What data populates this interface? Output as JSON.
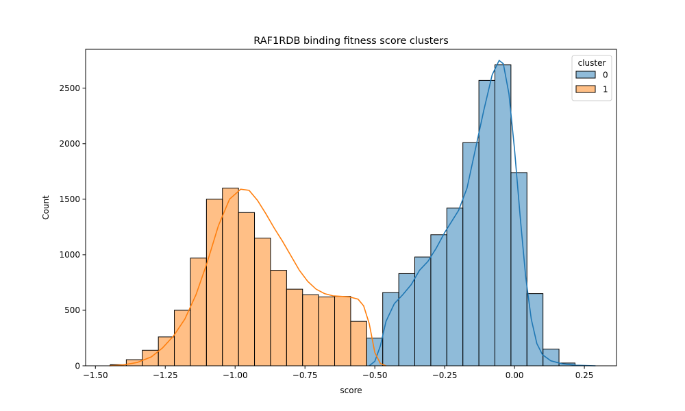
{
  "chart_data": {
    "type": "bar",
    "title": "RAF1RDB binding fitness score clusters",
    "xlabel": "score",
    "ylabel": "Count",
    "xlim": [
      -1.535,
      0.365
    ],
    "ylim": [
      0,
      2850
    ],
    "xticks": [
      -1.5,
      -1.25,
      -1.0,
      -0.75,
      -0.5,
      -0.25,
      0.0,
      0.25
    ],
    "xtick_labels": [
      "−1.50",
      "−1.25",
      "−1.00",
      "−0.75",
      "−0.50",
      "−0.25",
      "0.00",
      "0.25"
    ],
    "yticks": [
      0,
      500,
      1000,
      1500,
      2000,
      2500
    ],
    "ytick_labels": [
      "0",
      "500",
      "1000",
      "1500",
      "2000",
      "2500"
    ],
    "grid": false,
    "bin_edges": [
      -1.4468,
      -1.3894,
      -1.3321,
      -1.2747,
      -1.2174,
      -1.16,
      -1.1026,
      -1.0453,
      -0.9879,
      -0.9306,
      -0.8732,
      -0.8158,
      -0.7585,
      -0.7011,
      -0.6438,
      -0.5864,
      -0.5291,
      -0.4717,
      -0.4143,
      -0.357,
      -0.2996,
      -0.2423,
      -0.1849,
      -0.1275,
      -0.0702,
      -0.0128,
      0.0445,
      0.1019,
      0.1592,
      0.2166
    ],
    "legend": {
      "title": "cluster",
      "position": "top-right"
    },
    "series": [
      {
        "name": "0",
        "color": "#1f77b4",
        "fill": "#8fbbd9",
        "values": [
          0,
          0,
          0,
          0,
          0,
          0,
          0,
          0,
          0,
          0,
          0,
          0,
          0,
          0,
          0,
          0,
          250,
          660,
          830,
          980,
          1180,
          1420,
          2010,
          2570,
          2710,
          1740,
          650,
          150,
          25
        ],
        "kde": [
          [
            -0.52,
            0
          ],
          [
            -0.5,
            40
          ],
          [
            -0.48,
            180
          ],
          [
            -0.46,
            400
          ],
          [
            -0.43,
            560
          ],
          [
            -0.4,
            640
          ],
          [
            -0.37,
            730
          ],
          [
            -0.34,
            860
          ],
          [
            -0.31,
            940
          ],
          [
            -0.28,
            1060
          ],
          [
            -0.25,
            1200
          ],
          [
            -0.22,
            1320
          ],
          [
            -0.2,
            1400
          ],
          [
            -0.17,
            1600
          ],
          [
            -0.14,
            1950
          ],
          [
            -0.11,
            2300
          ],
          [
            -0.08,
            2620
          ],
          [
            -0.055,
            2750
          ],
          [
            -0.04,
            2720
          ],
          [
            -0.02,
            2450
          ],
          [
            0.0,
            1950
          ],
          [
            0.02,
            1350
          ],
          [
            0.04,
            800
          ],
          [
            0.06,
            420
          ],
          [
            0.08,
            200
          ],
          [
            0.1,
            100
          ],
          [
            0.13,
            45
          ],
          [
            0.17,
            18
          ],
          [
            0.22,
            5
          ],
          [
            0.29,
            0
          ]
        ]
      },
      {
        "name": "1",
        "color": "#ff7f0e",
        "fill": "#ffbf86",
        "values": [
          10,
          55,
          140,
          260,
          500,
          970,
          1500,
          1600,
          1380,
          1150,
          860,
          690,
          640,
          620,
          625,
          400,
          0,
          0,
          0,
          0,
          0,
          0,
          0,
          0,
          0,
          0,
          0,
          0,
          0
        ],
        "kde": [
          [
            -1.45,
            0
          ],
          [
            -1.4,
            8
          ],
          [
            -1.35,
            30
          ],
          [
            -1.3,
            80
          ],
          [
            -1.26,
            160
          ],
          [
            -1.22,
            270
          ],
          [
            -1.18,
            420
          ],
          [
            -1.14,
            640
          ],
          [
            -1.1,
            930
          ],
          [
            -1.06,
            1260
          ],
          [
            -1.02,
            1500
          ],
          [
            -0.98,
            1590
          ],
          [
            -0.95,
            1580
          ],
          [
            -0.92,
            1490
          ],
          [
            -0.89,
            1370
          ],
          [
            -0.86,
            1240
          ],
          [
            -0.83,
            1120
          ],
          [
            -0.8,
            990
          ],
          [
            -0.77,
            860
          ],
          [
            -0.74,
            760
          ],
          [
            -0.71,
            690
          ],
          [
            -0.68,
            650
          ],
          [
            -0.65,
            630
          ],
          [
            -0.62,
            625
          ],
          [
            -0.59,
            620
          ],
          [
            -0.56,
            600
          ],
          [
            -0.54,
            540
          ],
          [
            -0.52,
            380
          ],
          [
            -0.5,
            120
          ],
          [
            -0.48,
            20
          ],
          [
            -0.46,
            0
          ]
        ]
      }
    ]
  }
}
